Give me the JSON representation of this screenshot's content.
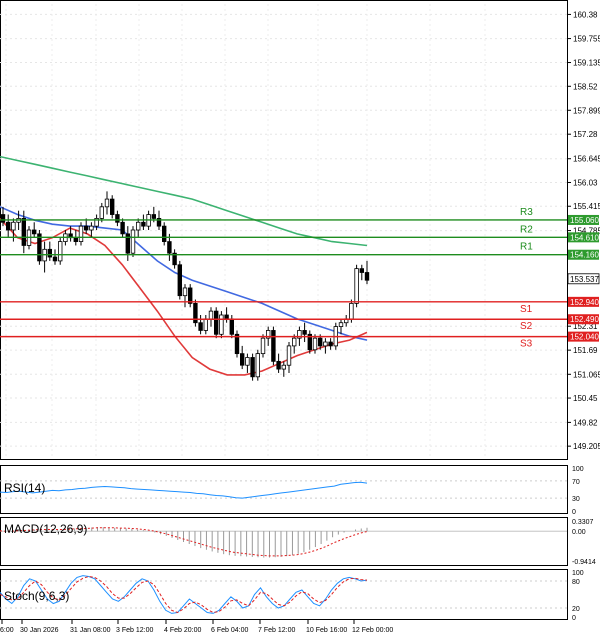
{
  "chart_data": [
    {
      "type": "candlestick",
      "title": "",
      "price_axis_ticks": [
        160.38,
        159.755,
        159.135,
        158.52,
        157.899,
        157.28,
        156.645,
        156.03,
        155.415,
        154.785,
        152.31,
        151.69,
        151.065,
        150.45,
        149.82,
        149.205
      ],
      "ylim": [
        148.95,
        160.65
      ],
      "current_price": 153.537,
      "candles": [
        {
          "o": 155.2,
          "h": 155.4,
          "l": 154.9,
          "c": 155.0
        },
        {
          "o": 155.0,
          "h": 155.2,
          "l": 154.6,
          "c": 154.8
        },
        {
          "o": 154.8,
          "h": 155.1,
          "l": 154.5,
          "c": 155.0
        },
        {
          "o": 155.0,
          "h": 155.3,
          "l": 154.8,
          "c": 155.1
        },
        {
          "o": 155.1,
          "h": 155.3,
          "l": 154.2,
          "c": 154.4
        },
        {
          "o": 154.4,
          "h": 154.9,
          "l": 154.3,
          "c": 154.8
        },
        {
          "o": 154.8,
          "h": 155.0,
          "l": 154.6,
          "c": 154.7
        },
        {
          "o": 154.7,
          "h": 154.8,
          "l": 153.9,
          "c": 154.0
        },
        {
          "o": 154.0,
          "h": 154.5,
          "l": 153.7,
          "c": 154.3
        },
        {
          "o": 154.3,
          "h": 154.5,
          "l": 154.0,
          "c": 154.1
        },
        {
          "o": 154.1,
          "h": 154.3,
          "l": 153.9,
          "c": 154.0
        },
        {
          "o": 154.0,
          "h": 154.6,
          "l": 153.9,
          "c": 154.5
        },
        {
          "o": 154.5,
          "h": 154.8,
          "l": 154.4,
          "c": 154.7
        },
        {
          "o": 154.7,
          "h": 154.9,
          "l": 154.5,
          "c": 154.6
        },
        {
          "o": 154.6,
          "h": 154.8,
          "l": 154.4,
          "c": 154.5
        },
        {
          "o": 154.5,
          "h": 155.0,
          "l": 154.4,
          "c": 154.9
        },
        {
          "o": 154.9,
          "h": 155.1,
          "l": 154.7,
          "c": 154.8
        },
        {
          "o": 154.8,
          "h": 155.0,
          "l": 154.6,
          "c": 154.9
        },
        {
          "o": 154.9,
          "h": 155.2,
          "l": 154.8,
          "c": 155.1
        },
        {
          "o": 155.1,
          "h": 155.5,
          "l": 155.0,
          "c": 155.4
        },
        {
          "o": 155.4,
          "h": 155.8,
          "l": 155.2,
          "c": 155.6
        },
        {
          "o": 155.6,
          "h": 155.7,
          "l": 155.1,
          "c": 155.2
        },
        {
          "o": 155.2,
          "h": 155.3,
          "l": 154.9,
          "c": 155.0
        },
        {
          "o": 155.0,
          "h": 155.1,
          "l": 154.6,
          "c": 154.7
        },
        {
          "o": 154.7,
          "h": 154.9,
          "l": 154.0,
          "c": 154.2
        },
        {
          "o": 154.2,
          "h": 154.9,
          "l": 154.1,
          "c": 154.8
        },
        {
          "o": 154.8,
          "h": 155.1,
          "l": 154.6,
          "c": 155.0
        },
        {
          "o": 155.0,
          "h": 155.2,
          "l": 154.8,
          "c": 154.9
        },
        {
          "o": 154.9,
          "h": 155.3,
          "l": 154.8,
          "c": 155.2
        },
        {
          "o": 155.2,
          "h": 155.4,
          "l": 155.0,
          "c": 155.1
        },
        {
          "o": 155.1,
          "h": 155.3,
          "l": 154.8,
          "c": 154.9
        },
        {
          "o": 154.9,
          "h": 155.0,
          "l": 154.4,
          "c": 154.5
        },
        {
          "o": 154.5,
          "h": 154.7,
          "l": 154.0,
          "c": 154.2
        },
        {
          "o": 154.2,
          "h": 154.3,
          "l": 153.8,
          "c": 153.9
        },
        {
          "o": 153.9,
          "h": 154.0,
          "l": 153.0,
          "c": 153.1
        },
        {
          "o": 153.1,
          "h": 153.4,
          "l": 152.8,
          "c": 153.3
        },
        {
          "o": 153.3,
          "h": 153.4,
          "l": 152.8,
          "c": 152.9
        },
        {
          "o": 152.9,
          "h": 153.0,
          "l": 152.3,
          "c": 152.4
        },
        {
          "o": 152.4,
          "h": 152.6,
          "l": 152.1,
          "c": 152.2
        },
        {
          "o": 152.2,
          "h": 152.6,
          "l": 152.1,
          "c": 152.5
        },
        {
          "o": 152.5,
          "h": 152.8,
          "l": 152.3,
          "c": 152.7
        },
        {
          "o": 152.7,
          "h": 152.8,
          "l": 152.0,
          "c": 152.1
        },
        {
          "o": 152.1,
          "h": 152.7,
          "l": 152.0,
          "c": 152.6
        },
        {
          "o": 152.6,
          "h": 152.8,
          "l": 152.4,
          "c": 152.5
        },
        {
          "o": 152.5,
          "h": 152.6,
          "l": 152.0,
          "c": 152.1
        },
        {
          "o": 152.1,
          "h": 152.2,
          "l": 151.5,
          "c": 151.6
        },
        {
          "o": 151.6,
          "h": 151.8,
          "l": 151.2,
          "c": 151.3
        },
        {
          "o": 151.3,
          "h": 151.6,
          "l": 151.1,
          "c": 151.5
        },
        {
          "o": 151.5,
          "h": 151.6,
          "l": 150.9,
          "c": 151.0
        },
        {
          "o": 151.0,
          "h": 151.7,
          "l": 150.9,
          "c": 151.6
        },
        {
          "o": 151.6,
          "h": 152.1,
          "l": 151.5,
          "c": 152.0
        },
        {
          "o": 152.0,
          "h": 152.3,
          "l": 151.8,
          "c": 152.2
        },
        {
          "o": 152.2,
          "h": 152.3,
          "l": 151.3,
          "c": 151.4
        },
        {
          "o": 151.4,
          "h": 151.6,
          "l": 151.1,
          "c": 151.2
        },
        {
          "o": 151.2,
          "h": 151.4,
          "l": 151.0,
          "c": 151.3
        },
        {
          "o": 151.3,
          "h": 151.9,
          "l": 151.1,
          "c": 151.8
        },
        {
          "o": 151.8,
          "h": 152.1,
          "l": 151.6,
          "c": 152.0
        },
        {
          "o": 152.0,
          "h": 152.3,
          "l": 151.8,
          "c": 152.2
        },
        {
          "o": 152.2,
          "h": 152.4,
          "l": 151.9,
          "c": 152.1
        },
        {
          "o": 152.1,
          "h": 152.2,
          "l": 151.6,
          "c": 151.7
        },
        {
          "o": 151.7,
          "h": 152.1,
          "l": 151.6,
          "c": 152.0
        },
        {
          "o": 152.0,
          "h": 152.1,
          "l": 151.7,
          "c": 151.8
        },
        {
          "o": 151.8,
          "h": 152.0,
          "l": 151.6,
          "c": 151.9
        },
        {
          "o": 151.9,
          "h": 152.0,
          "l": 151.7,
          "c": 151.8
        },
        {
          "o": 151.8,
          "h": 152.4,
          "l": 151.7,
          "c": 152.3
        },
        {
          "o": 152.3,
          "h": 152.5,
          "l": 152.1,
          "c": 152.4
        },
        {
          "o": 152.4,
          "h": 152.6,
          "l": 152.3,
          "c": 152.5
        },
        {
          "o": 152.5,
          "h": 153.0,
          "l": 152.4,
          "c": 152.9
        },
        {
          "o": 152.9,
          "h": 153.9,
          "l": 152.8,
          "c": 153.8
        },
        {
          "o": 153.8,
          "h": 153.9,
          "l": 153.5,
          "c": 153.7
        },
        {
          "o": 153.7,
          "h": 154.0,
          "l": 153.4,
          "c": 153.5
        }
      ],
      "moving_averages": [
        {
          "color": "#3cb371",
          "values": [
            156.7,
            156.6,
            156.5,
            156.4,
            156.3,
            156.2,
            156.1,
            156.0,
            155.9,
            155.8,
            155.7,
            155.6,
            155.45,
            155.3,
            155.15,
            155.0,
            154.85,
            154.7,
            154.6,
            154.5,
            154.45,
            154.4
          ]
        },
        {
          "color": "#4169e1",
          "values": [
            155.4,
            155.2,
            155.05,
            154.95,
            154.9,
            154.9,
            154.85,
            154.8,
            154.4,
            154.0,
            153.7,
            153.5,
            153.35,
            153.2,
            153.05,
            152.9,
            152.7,
            152.5,
            152.35,
            152.2,
            152.05,
            151.95
          ]
        },
        {
          "color": "#e03a3a",
          "values": [
            155.1,
            154.6,
            154.45,
            154.6,
            154.85,
            154.7,
            154.4,
            153.9,
            153.3,
            152.7,
            152.05,
            151.5,
            151.2,
            151.05,
            151.05,
            151.15,
            151.35,
            151.55,
            151.7,
            151.85,
            151.95,
            152.15
          ]
        }
      ],
      "levels": [
        {
          "label": "R3",
          "value": 155.06,
          "tag": "155.060",
          "color": "#1e8c1e",
          "tag_color": "#2e9b2e"
        },
        {
          "label": "R2",
          "value": 154.61,
          "tag": "154.610",
          "color": "#1e8c1e",
          "tag_color": "#2e9b2e"
        },
        {
          "label": "R1",
          "value": 154.16,
          "tag": "154.160",
          "color": "#1e8c1e",
          "tag_color": "#2e9b2e"
        },
        {
          "label": "S1",
          "value": 152.94,
          "tag": "152.940",
          "color": "#e02020",
          "tag_color": "#e02020"
        },
        {
          "label": "S2",
          "value": 152.49,
          "tag": "152.490",
          "color": "#e02020",
          "tag_color": "#e02020"
        },
        {
          "label": "S3",
          "value": 152.04,
          "tag": "152.040",
          "color": "#e02020",
          "tag_color": "#e02020"
        }
      ],
      "x_tick_labels": [
        "6:00",
        "30 Jan 2026",
        "31 Jan 08:00",
        "3 Feb 12:00",
        "4 Feb 20:00",
        "6 Feb 04:00",
        "7 Feb 12:00",
        "10 Feb 16:00",
        "12 Feb 00:00"
      ]
    },
    {
      "type": "line",
      "title": "RSI(14)",
      "ylim": [
        0,
        100
      ],
      "ticks": [
        100,
        70,
        30,
        0
      ],
      "series": [
        {
          "color": "#1e90ff",
          "values": [
            44,
            43,
            45,
            46,
            44,
            42,
            44,
            46,
            48,
            47,
            49,
            50,
            52,
            53,
            55,
            56,
            57,
            56,
            55,
            54,
            52,
            51,
            50,
            49,
            48,
            47,
            46,
            45,
            44,
            43,
            41,
            40,
            38,
            36,
            35,
            33,
            31,
            30,
            32,
            34,
            36,
            38,
            40,
            42,
            44,
            46,
            48,
            50,
            52,
            54,
            56,
            58,
            62,
            64,
            66,
            67,
            65
          ]
        }
      ]
    },
    {
      "type": "bar",
      "title": "MACD(12,26,9)",
      "ylim": [
        -0.9414,
        0.3307
      ],
      "ticks": [
        "0.3307",
        "0.00",
        "-0.9414"
      ],
      "values": [
        0.02,
        0.0,
        -0.02,
        0.03,
        0.04,
        0.05,
        0.05,
        0.06,
        0.06,
        0.05,
        0.05,
        0.06,
        0.07,
        0.08,
        0.09,
        0.1,
        0.11,
        0.12,
        0.12,
        0.11,
        0.1,
        0.09,
        0.08,
        0.07,
        0.05,
        0.03,
        0.0,
        -0.04,
        -0.09,
        -0.14,
        -0.2,
        -0.26,
        -0.32,
        -0.38,
        -0.44,
        -0.5,
        -0.55,
        -0.6,
        -0.64,
        -0.68,
        -0.71,
        -0.73,
        -0.74,
        -0.75,
        -0.76,
        -0.77,
        -0.78,
        -0.78,
        -0.77,
        -0.76,
        -0.74,
        -0.71,
        -0.67,
        -0.62,
        -0.55,
        -0.47,
        -0.38,
        -0.28,
        -0.18,
        -0.1,
        -0.04,
        0.0,
        0.05,
        0.08,
        0.1
      ],
      "signal": [
        0.01,
        0.0,
        0.0,
        0.01,
        0.02,
        0.03,
        0.04,
        0.05,
        0.05,
        0.05,
        0.05,
        0.05,
        0.06,
        0.07,
        0.07,
        0.08,
        0.09,
        0.1,
        0.1,
        0.1,
        0.1,
        0.09,
        0.09,
        0.08,
        0.07,
        0.05,
        0.03,
        0.0,
        -0.04,
        -0.08,
        -0.13,
        -0.18,
        -0.23,
        -0.28,
        -0.33,
        -0.38,
        -0.43,
        -0.48,
        -0.52,
        -0.56,
        -0.6,
        -0.63,
        -0.65,
        -0.67,
        -0.69,
        -0.71,
        -0.72,
        -0.73,
        -0.73,
        -0.73,
        -0.72,
        -0.71,
        -0.69,
        -0.66,
        -0.62,
        -0.57,
        -0.51,
        -0.44,
        -0.36,
        -0.29,
        -0.22,
        -0.16,
        -0.1,
        -0.05,
        -0.01
      ],
      "bar_color": "#999999",
      "signal_color": "#e02020"
    },
    {
      "type": "line",
      "title": "Stoch(9,6,3)",
      "ylim": [
        0,
        100
      ],
      "ticks": [
        100,
        80,
        20,
        0
      ],
      "series": [
        {
          "color": "#1e90ff",
          "values": [
            55,
            40,
            30,
            45,
            70,
            85,
            80,
            60,
            40,
            30,
            35,
            55,
            75,
            88,
            92,
            90,
            85,
            70,
            55,
            40,
            35,
            45,
            60,
            75,
            85,
            80,
            60,
            35,
            15,
            8,
            10,
            25,
            40,
            30,
            20,
            10,
            8,
            15,
            30,
            45,
            35,
            20,
            25,
            50,
            65,
            45,
            30,
            20,
            25,
            40,
            55,
            60,
            45,
            30,
            25,
            40,
            60,
            75,
            85,
            88,
            85,
            80,
            82
          ]
        },
        {
          "color": "#e02020",
          "values": [
            50,
            45,
            38,
            40,
            55,
            70,
            80,
            72,
            55,
            42,
            38,
            48,
            63,
            78,
            86,
            90,
            88,
            80,
            68,
            52,
            42,
            42,
            52,
            65,
            77,
            80,
            72,
            52,
            30,
            15,
            10,
            18,
            30,
            33,
            27,
            17,
            10,
            12,
            22,
            36,
            38,
            30,
            25,
            38,
            55,
            52,
            40,
            28,
            25,
            33,
            47,
            56,
            52,
            40,
            32,
            37,
            50,
            66,
            78,
            85,
            86,
            83,
            82
          ]
        }
      ]
    }
  ]
}
